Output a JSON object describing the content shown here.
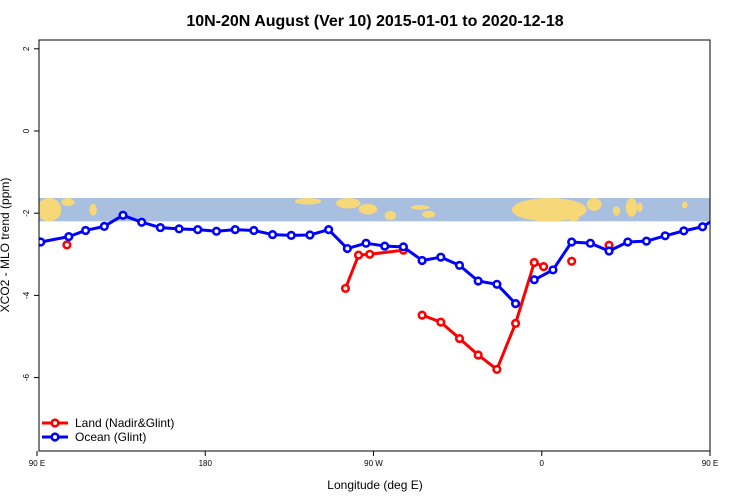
{
  "chart_data": {
    "type": "line",
    "title": "10N-20N August (Ver 10)   2015-01-01 to 2020-12-18",
    "xlabel": "Longitude (deg E)",
    "ylabel": "XCO2 - MLO trend (ppm)",
    "xlim": [
      90,
      450
    ],
    "ylim": [
      -8,
      2.2
    ],
    "yticks": [
      2,
      0,
      -2,
      -4,
      -6
    ],
    "ytick_labels": [
      "2",
      "0",
      "-2",
      "-4",
      "-6"
    ],
    "xticks": [
      90,
      180,
      270,
      360,
      450,
      540
    ],
    "xtick_labels": [
      "90 E",
      "180",
      "90 W",
      "0",
      "90 E",
      "180"
    ],
    "map_strip": {
      "y_range": [
        -2.2,
        -1.63
      ],
      "ocean_color": "#a8bfe0",
      "land_color": "#f7d878"
    },
    "legend_position": "bottom-left",
    "series": [
      {
        "name": "Land (Nadir&Glint)",
        "color": "#ff0000",
        "segments": [
          [
            [
              106,
              -2.77
            ]
          ],
          [
            [
              255,
              -3.83
            ],
            [
              262,
              -3.02
            ],
            [
              268,
              -3.0
            ],
            [
              286,
              -2.9
            ]
          ],
          [
            [
              296,
              -4.48
            ],
            [
              306,
              -4.65
            ],
            [
              316,
              -5.05
            ],
            [
              326,
              -5.45
            ],
            [
              336,
              -5.8
            ],
            [
              346,
              -4.68
            ],
            [
              356,
              -3.2
            ],
            [
              361,
              -3.3
            ]
          ],
          [
            [
              376,
              -3.17
            ]
          ],
          [
            [
              396,
              -2.78
            ]
          ]
        ]
      },
      {
        "name": "Ocean (Glint)",
        "color": "#0000ff",
        "segments": [
          [
            [
              92,
              -2.7
            ],
            [
              107,
              -2.57
            ],
            [
              116,
              -2.42
            ],
            [
              126,
              -2.32
            ],
            [
              136,
              -2.05
            ],
            [
              146,
              -2.22
            ],
            [
              156,
              -2.35
            ],
            [
              166,
              -2.38
            ],
            [
              176,
              -2.4
            ],
            [
              186,
              -2.44
            ],
            [
              196,
              -2.4
            ],
            [
              206,
              -2.42
            ],
            [
              216,
              -2.52
            ],
            [
              226,
              -2.54
            ],
            [
              236,
              -2.53
            ],
            [
              246,
              -2.4
            ],
            [
              256,
              -2.86
            ],
            [
              266,
              -2.73
            ],
            [
              276,
              -2.8
            ],
            [
              286,
              -2.82
            ],
            [
              296,
              -3.15
            ],
            [
              306,
              -3.07
            ],
            [
              316,
              -3.27
            ],
            [
              326,
              -3.65
            ],
            [
              336,
              -3.73
            ],
            [
              346,
              -4.2
            ]
          ],
          [
            [
              356,
              -3.62
            ],
            [
              366,
              -3.38
            ],
            [
              376,
              -2.7
            ],
            [
              386,
              -2.73
            ],
            [
              396,
              -2.92
            ],
            [
              406,
              -2.7
            ],
            [
              416,
              -2.68
            ],
            [
              426,
              -2.55
            ],
            [
              436,
              -2.43
            ],
            [
              446,
              -2.33
            ],
            [
              456,
              -2.05
            ],
            [
              466,
              -2.2
            ],
            [
              476,
              -2.35
            ],
            [
              486,
              -2.38
            ],
            [
              496,
              -2.4
            ]
          ]
        ]
      }
    ]
  }
}
